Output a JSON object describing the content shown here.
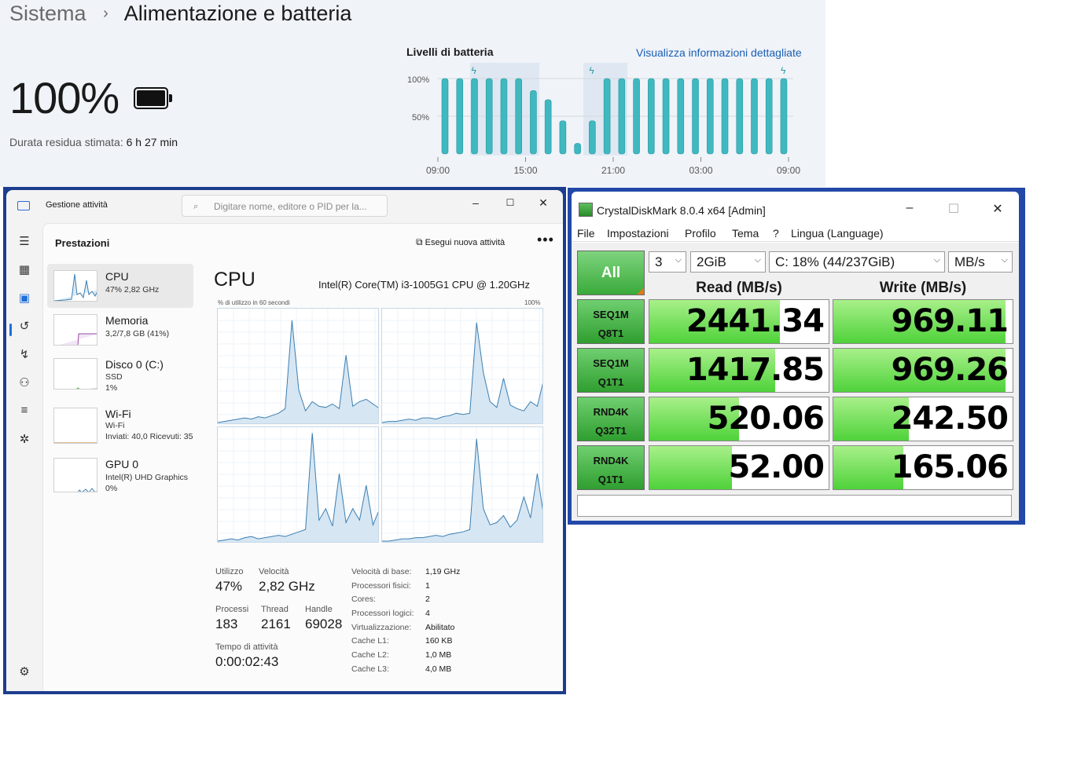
{
  "settings": {
    "breadcrumb_root": "Sistema",
    "breadcrumb_sep": "›",
    "page_title": "Alimentazione e batteria",
    "battery_percent": "100%",
    "remaining_label": "Durata residua stimata:",
    "remaining_value": "6 h 27 min",
    "chart_title": "Livelli di batteria",
    "details_link": "Visualizza informazioni dettagliate",
    "accent_color": "#3fb8c0"
  },
  "chart_data": {
    "type": "bar",
    "title": "Livelli di batteria",
    "y_tick_labels": [
      "100%",
      "50%"
    ],
    "x_tick_labels": [
      "09:00",
      "15:00",
      "21:00",
      "03:00",
      "09:00"
    ],
    "values": [
      100,
      100,
      100,
      100,
      100,
      100,
      84,
      72,
      44,
      14,
      44,
      100,
      100,
      100,
      100,
      100,
      100,
      100,
      100,
      100,
      100,
      100,
      100,
      100
    ],
    "charging_indices": [
      2,
      10,
      23
    ],
    "ylim": [
      0,
      100
    ]
  },
  "taskmgr": {
    "title": "Gestione attività",
    "search_placeholder": "Digitare nome, editore o PID per la...",
    "section": "Prestazioni",
    "run_task": "Esegui nuova attività",
    "more": "•••",
    "sidebar": [
      {
        "name": "CPU",
        "sub1": "47% 2,82 GHz",
        "sub2": ""
      },
      {
        "name": "Memoria",
        "sub1": "3,2/7,8 GB (41%)",
        "sub2": ""
      },
      {
        "name": "Disco 0 (C:)",
        "sub1": "SSD",
        "sub2": "1%"
      },
      {
        "name": "Wi-Fi",
        "sub1": "Wi-Fi",
        "sub2": "Inviati: 40,0 Ricevuti: 35"
      },
      {
        "name": "GPU 0",
        "sub1": "Intel(R) UHD Graphics",
        "sub2": "0%"
      }
    ],
    "cpu": {
      "heading": "CPU",
      "model": "Intel(R) Core(TM) i3-1005G1 CPU @ 1.20GHz",
      "axis_left": "% di utilizzo in 60 secondi",
      "axis_right": "100%",
      "utilization_label": "Utilizzo",
      "utilization_value": "47%",
      "speed_label": "Velocità",
      "speed_value": "2,82 GHz",
      "processes_label": "Processi",
      "processes_value": "183",
      "threads_label": "Thread",
      "threads_value": "2161",
      "handles_label": "Handle",
      "handles_value": "69028",
      "uptime_label": "Tempo di attività",
      "uptime_value": "0:00:02:43",
      "specs": [
        {
          "label": "Velocità di base:",
          "value": "1,19 GHz"
        },
        {
          "label": "Processori fisici:",
          "value": "1"
        },
        {
          "label": "Cores:",
          "value": "2"
        },
        {
          "label": "Processori logici:",
          "value": "4"
        },
        {
          "label": "Virtualizzazione:",
          "value": "Abilitato"
        },
        {
          "label": "Cache L1:",
          "value": "160 KB"
        },
        {
          "label": "Cache L2:",
          "value": "1,0 MB"
        },
        {
          "label": "Cache L3:",
          "value": "4,0 MB"
        }
      ]
    }
  },
  "cdm": {
    "title": "CrystalDiskMark 8.0.4 x64 [Admin]",
    "menu": [
      "File",
      "Impostazioni",
      "Profilo",
      "Tema",
      "?",
      "Lingua (Language)"
    ],
    "all_label": "All",
    "count": "3",
    "size": "2GiB",
    "drive": "C: 18% (44/237GiB)",
    "unit": "MB/s",
    "read_header": "Read (MB/s)",
    "write_header": "Write (MB/s)",
    "rows": [
      {
        "test1": "SEQ1M",
        "test2": "Q8T1",
        "read": "2441.34",
        "write": "969.11",
        "read_fill": 0.73,
        "write_fill": 0.96
      },
      {
        "test1": "SEQ1M",
        "test2": "Q1T1",
        "read": "1417.85",
        "write": "969.26",
        "read_fill": 0.7,
        "write_fill": 0.96
      },
      {
        "test1": "RND4K",
        "test2": "Q32T1",
        "read": "520.06",
        "write": "242.50",
        "read_fill": 0.5,
        "write_fill": 0.42
      },
      {
        "test1": "RND4K",
        "test2": "Q1T1",
        "read": "52.00",
        "write": "165.06",
        "read_fill": 0.46,
        "write_fill": 0.39
      }
    ]
  }
}
